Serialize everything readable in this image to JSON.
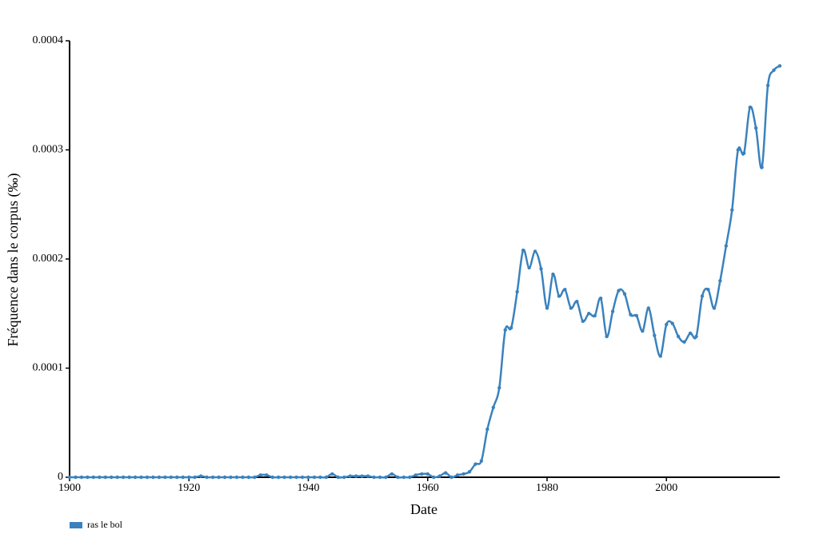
{
  "chart_data": {
    "type": "line",
    "x_label": "Date",
    "y_label": "Fréquence dans le corpus (‰)",
    "xlim": [
      1900,
      2019
    ],
    "xticks": [
      1900,
      1920,
      1940,
      1960,
      1980,
      2000
    ],
    "ylim": [
      0,
      0.0004
    ],
    "yticks": [
      0,
      0.0001,
      0.0002,
      0.0003,
      0.0004
    ],
    "legend": "bottom-left",
    "x": [
      1900,
      1901,
      1902,
      1903,
      1904,
      1905,
      1906,
      1907,
      1908,
      1909,
      1910,
      1911,
      1912,
      1913,
      1914,
      1915,
      1916,
      1917,
      1918,
      1919,
      1920,
      1921,
      1922,
      1923,
      1924,
      1925,
      1926,
      1927,
      1928,
      1929,
      1930,
      1931,
      1932,
      1933,
      1934,
      1935,
      1936,
      1937,
      1938,
      1939,
      1940,
      1941,
      1942,
      1943,
      1944,
      1945,
      1946,
      1947,
      1948,
      1949,
      1950,
      1951,
      1952,
      1953,
      1954,
      1955,
      1956,
      1957,
      1958,
      1959,
      1960,
      1961,
      1962,
      1963,
      1964,
      1965,
      1966,
      1967,
      1968,
      1969,
      1970,
      1971,
      1972,
      1973,
      1974,
      1975,
      1976,
      1977,
      1978,
      1979,
      1980,
      1981,
      1982,
      1983,
      1984,
      1985,
      1986,
      1987,
      1988,
      1989,
      1990,
      1991,
      1992,
      1993,
      1994,
      1995,
      1996,
      1997,
      1998,
      1999,
      2000,
      2001,
      2002,
      2003,
      2004,
      2005,
      2006,
      2007,
      2008,
      2009,
      2010,
      2011,
      2012,
      2013,
      2014,
      2015,
      2016,
      2017,
      2018,
      2019
    ],
    "series": [
      {
        "name": "ras le bol",
        "color": "#3a82bd",
        "values": [
          0,
          0,
          0,
          0,
          0,
          0,
          0,
          0,
          0,
          0,
          0,
          0,
          0,
          0,
          0,
          0,
          0,
          0,
          0,
          0,
          0,
          0,
          1e-06,
          0,
          0,
          0,
          0,
          0,
          0,
          0,
          0,
          0,
          2e-06,
          2e-06,
          0,
          0,
          0,
          0,
          0,
          0,
          0,
          0,
          0,
          0,
          3e-06,
          0,
          0,
          1e-06,
          1e-06,
          1e-06,
          1e-06,
          0,
          0,
          0,
          3e-06,
          0,
          0,
          0,
          2e-06,
          3e-06,
          3e-06,
          0,
          1e-06,
          4e-06,
          0,
          2e-06,
          3e-06,
          5e-06,
          1.2e-05,
          1.5e-05,
          4.4e-05,
          6.4e-05,
          8.2e-05,
          0.000135,
          0.000137,
          0.00017,
          0.000208,
          0.000192,
          0.000207,
          0.000191,
          0.000155,
          0.000186,
          0.000166,
          0.000172,
          0.000155,
          0.000161,
          0.000143,
          0.00015,
          0.000148,
          0.000164,
          0.000129,
          0.000152,
          0.000171,
          0.000168,
          0.000149,
          0.000148,
          0.000134,
          0.000155,
          0.00013,
          0.000111,
          0.00014,
          0.000141,
          0.000129,
          0.000124,
          0.000132,
          0.000129,
          0.000166,
          0.000172,
          0.000155,
          0.00018,
          0.000212,
          0.000245,
          0.0003,
          0.000297,
          0.000339,
          0.00032,
          0.000284,
          0.000359,
          0.000373,
          0.000377
        ]
      }
    ]
  }
}
